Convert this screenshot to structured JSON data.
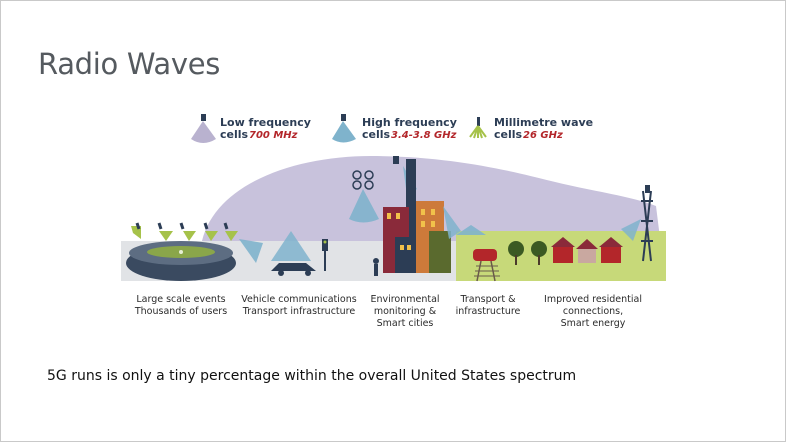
{
  "slide": {
    "title": "Radio Waves",
    "footer_text": "5G runs is only a tiny percentage within the overall United States spectrum"
  },
  "legend": [
    {
      "name": "Low frequency",
      "prefix": "cells",
      "freq": "700 MHz"
    },
    {
      "name": "High frequency",
      "prefix": "cells",
      "freq": "3.4-3.8 GHz"
    },
    {
      "name": "Millimetre wave",
      "prefix": "cells",
      "freq": "26 GHz"
    }
  ],
  "captions": [
    {
      "lines": [
        "Large scale events",
        "Thousands of users"
      ]
    },
    {
      "lines": [
        "Vehicle communications",
        "Transport infrastructure"
      ]
    },
    {
      "lines": [
        "Environmental",
        "monitoring &",
        "Smart cities"
      ]
    },
    {
      "lines": [
        "Transport &",
        "infrastructure"
      ]
    },
    {
      "lines": [
        "Improved residential",
        "connections,",
        "Smart energy"
      ]
    }
  ],
  "colors": {
    "low_freq_cone": "#b9b2cf",
    "high_freq_cone": "#7fb3cc",
    "mmwave_cone": "#a6c24a",
    "ground": "#c7d979",
    "title_text": "#555a5f"
  },
  "icons": [
    "low-frequency-antenna-icon",
    "high-frequency-antenna-icon",
    "millimetre-wave-antenna-icon",
    "stadium-icon",
    "car-icon",
    "drone-icon",
    "city-buildings-icon",
    "train-icon",
    "houses-icon",
    "tower-icon"
  ]
}
